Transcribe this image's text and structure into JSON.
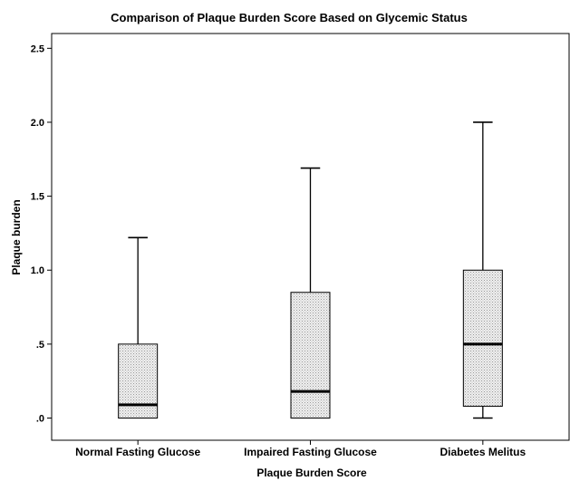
{
  "chart_data": {
    "type": "boxplot",
    "title": "Comparison of Plaque Burden Score Based on Glycemic Status",
    "xlabel": "Plaque Burden Score",
    "ylabel": "Plaque burden",
    "ylim": [
      -0.15,
      2.6
    ],
    "yticks": [
      {
        "value": 0.0,
        "label": ".0"
      },
      {
        "value": 0.5,
        "label": ".5"
      },
      {
        "value": 1.0,
        "label": "1.0"
      },
      {
        "value": 1.5,
        "label": "1.5"
      },
      {
        "value": 2.0,
        "label": "2.0"
      },
      {
        "value": 2.5,
        "label": "2.5"
      }
    ],
    "grid": false,
    "box_fill": "#dcdcdc",
    "boxes": [
      {
        "category": "Normal Fasting Glucose",
        "min": 0.0,
        "q1": 0.0,
        "median": 0.09,
        "q3": 0.5,
        "max": 1.22
      },
      {
        "category": "Impaired Fasting Glucose",
        "min": 0.0,
        "q1": 0.0,
        "median": 0.18,
        "q3": 0.85,
        "max": 1.69
      },
      {
        "category": "Diabetes Melitus",
        "min": 0.0,
        "q1": 0.08,
        "median": 0.5,
        "q3": 1.0,
        "max": 2.0
      }
    ]
  }
}
